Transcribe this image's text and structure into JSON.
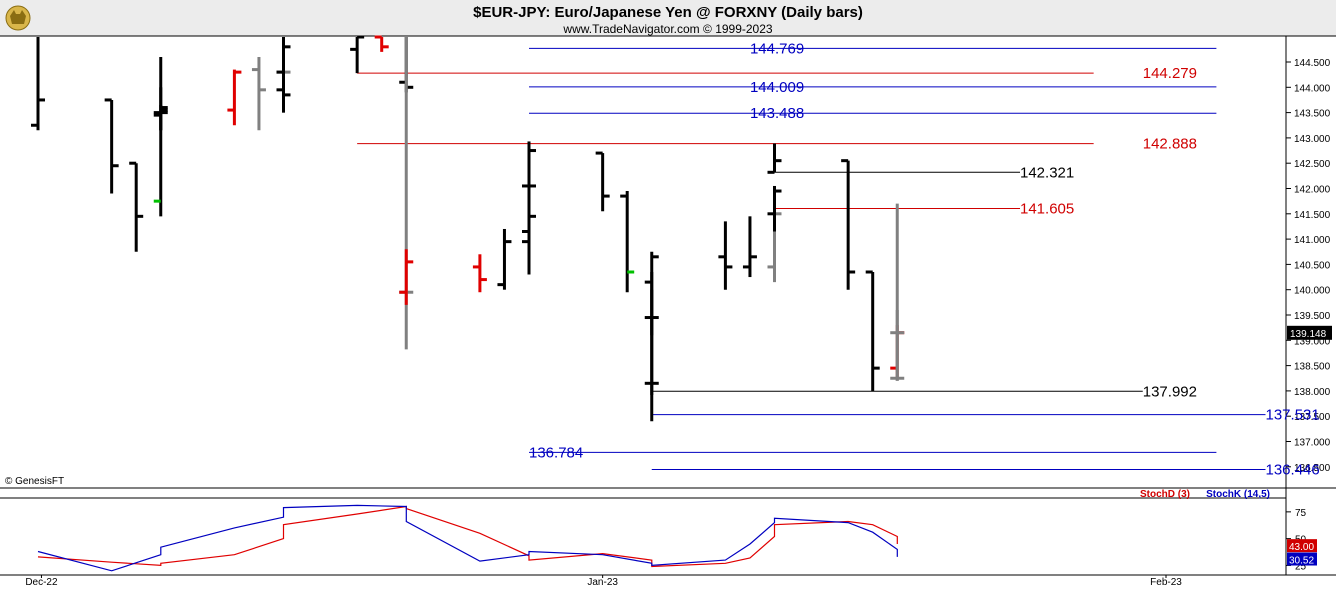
{
  "header": {
    "title": "$EUR-JPY:  Euro/Japanese Yen @ FORXNY  (Daily bars)",
    "subtitle": "www.TradeNavigator.com © 1999-2023",
    "watermark": "© GenesisFT",
    "logo_icon": "bull-logo-icon"
  },
  "colors": {
    "background": "#ffffff",
    "frame": "#000000",
    "header_bg": "#ececec",
    "bar_black": "#000000",
    "bar_gray": "#808080",
    "bar_red": "#e00000",
    "bar_green": "#00c000",
    "level_blue": "#0000c0",
    "level_red": "#d00000",
    "level_black": "#000000",
    "stoch_d": "#d00000",
    "stoch_k": "#0000c0"
  },
  "chart_data": [
    {
      "type": "ohlc",
      "title": "$EUR-JPY:  Euro/Japanese Yen @ FORXNY  (Daily bars)",
      "ylim": [
        136.2,
        145.3
      ],
      "y_ticks": [
        "144.500",
        "144.000",
        "143.500",
        "143.000",
        "142.500",
        "142.000",
        "141.500",
        "141.000",
        "140.500",
        "140.000",
        "139.500",
        "139.000",
        "138.500",
        "138.000",
        "137.500",
        "137.000",
        "136.500"
      ],
      "last_price": "139.148",
      "x_labels": [
        "Dec-22",
        "Jan-23",
        "Feb-23"
      ],
      "bars": [
        {
          "d": "2022-12-02",
          "o": 143.25,
          "h": 145.3,
          "l": 143.15,
          "c": 143.75,
          "col": "black"
        },
        {
          "d": "2022-12-05",
          "o": 143.75,
          "h": 143.75,
          "l": 141.9,
          "c": 142.45,
          "col": "black"
        },
        {
          "d": "2022-12-06",
          "o": 142.5,
          "h": 142.5,
          "l": 140.75,
          "c": 141.45,
          "col": "black"
        },
        {
          "d": "2022-12-07",
          "o": 141.75,
          "h": 143.65,
          "l": 141.45,
          "c": 143.55,
          "col": "black",
          "o_col": "green"
        },
        {
          "d": "2022-12-08",
          "o": 143.5,
          "h": 144.0,
          "l": 143.15,
          "c": 143.5,
          "col": "black"
        },
        {
          "d": "2022-12-09",
          "o": 143.45,
          "h": 144.6,
          "l": 143.15,
          "c": 143.6,
          "col": "black"
        },
        {
          "d": "2022-12-12",
          "o": 143.55,
          "h": 144.35,
          "l": 143.25,
          "c": 144.3,
          "col": "red"
        },
        {
          "d": "2022-12-13",
          "o": 144.35,
          "h": 144.6,
          "l": 143.15,
          "c": 143.95,
          "col": "gray"
        },
        {
          "d": "2022-12-14",
          "o": 143.95,
          "h": 145.3,
          "l": 143.8,
          "c": 143.85,
          "col": "black"
        },
        {
          "d": "2022-12-15",
          "o": 144.3,
          "h": 145.3,
          "l": 143.5,
          "c": 144.3,
          "col": "gray"
        },
        {
          "d": "2022-12-16",
          "o": 144.3,
          "h": 145.3,
          "l": 143.5,
          "c": 144.8,
          "col": "black"
        },
        {
          "d": "2022-12-19",
          "o": 144.75,
          "h": 145.3,
          "l": 144.28,
          "c": 145.1,
          "col": "black"
        },
        {
          "d": "2022-12-20",
          "o": 145.2,
          "h": 145.3,
          "l": 144.7,
          "c": 144.8,
          "col": "red"
        },
        {
          "d": "2022-12-21",
          "o": 144.1,
          "h": 145.3,
          "l": 143.9,
          "c": 144.0,
          "col": "black"
        },
        {
          "d": "2022-12-22",
          "o": 139.95,
          "h": 145.3,
          "l": 138.82,
          "c": 139.95,
          "col": "gray"
        },
        {
          "d": "2022-12-23",
          "o": 139.95,
          "h": 140.8,
          "l": 139.7,
          "c": 140.55,
          "col": "red"
        },
        {
          "d": "2022-12-26",
          "o": 140.45,
          "h": 140.7,
          "l": 139.95,
          "c": 140.2,
          "col": "red"
        },
        {
          "d": "2022-12-27",
          "o": 140.1,
          "h": 141.2,
          "l": 140.0,
          "c": 140.95,
          "col": "black"
        },
        {
          "d": "2022-12-28",
          "o": 140.95,
          "h": 141.6,
          "l": 140.3,
          "c": 141.45,
          "col": "black"
        },
        {
          "d": "2022-12-29",
          "o": 141.15,
          "h": 142.3,
          "l": 141.05,
          "c": 142.05,
          "col": "black"
        },
        {
          "d": "2022-12-30",
          "o": 142.05,
          "h": 142.93,
          "l": 141.9,
          "c": 142.75,
          "col": "black"
        },
        {
          "d": "2023-01-02",
          "o": 142.7,
          "h": 142.7,
          "l": 141.55,
          "c": 141.85,
          "col": "black"
        },
        {
          "d": "2023-01-03",
          "o": 141.85,
          "h": 141.95,
          "l": 139.95,
          "c": 140.35,
          "col": "black",
          "c_col": "green"
        },
        {
          "d": "2023-01-04",
          "o": 140.15,
          "h": 140.35,
          "l": 139.1,
          "c": 139.45,
          "col": "black"
        },
        {
          "d": "2023-01-05",
          "o": 139.45,
          "h": 140.0,
          "l": 137.4,
          "c": 138.15,
          "col": "black"
        },
        {
          "d": "2023-01-06",
          "o": 138.15,
          "h": 140.75,
          "l": 137.92,
          "c": 140.65,
          "col": "black"
        },
        {
          "d": "2023-01-09",
          "o": 140.65,
          "h": 141.35,
          "l": 140.0,
          "c": 140.45,
          "col": "black"
        },
        {
          "d": "2023-01-10",
          "o": 140.45,
          "h": 141.45,
          "l": 140.25,
          "c": 140.65,
          "col": "black"
        },
        {
          "d": "2023-01-11",
          "o": 140.45,
          "h": 141.92,
          "l": 140.15,
          "c": 141.5,
          "col": "gray"
        },
        {
          "d": "2023-01-12",
          "o": 141.5,
          "h": 142.05,
          "l": 141.15,
          "c": 141.95,
          "col": "black"
        },
        {
          "d": "2023-01-13",
          "o": 142.32,
          "h": 142.89,
          "l": 142.32,
          "c": 142.55,
          "col": "black"
        },
        {
          "d": "2023-01-16",
          "o": 142.55,
          "h": 142.55,
          "l": 140.0,
          "c": 140.35,
          "col": "black"
        },
        {
          "d": "2023-01-17",
          "o": 140.35,
          "h": 140.35,
          "l": 137.99,
          "c": 138.45,
          "col": "black"
        },
        {
          "d": "2023-01-18",
          "o": 138.45,
          "h": 139.3,
          "l": 138.25,
          "c": 139.15,
          "col": "red"
        },
        {
          "d": "2023-01-19",
          "o": 139.15,
          "h": 139.6,
          "l": 138.2,
          "c": 138.25,
          "col": "gray"
        },
        {
          "d": "2023-01-20",
          "o": 138.25,
          "h": 141.7,
          "l": 138.2,
          "c": 139.15,
          "col": "gray"
        }
      ],
      "levels": [
        {
          "value": 144.769,
          "label": "144.769",
          "color": "blue",
          "from": "2022-12-30",
          "to": "2023-02-06",
          "label_at": "2023-01-10"
        },
        {
          "value": 144.279,
          "label": "144.279",
          "color": "red",
          "from": "2022-12-19",
          "to": "2023-01-30",
          "label_at": "2023-02-01"
        },
        {
          "value": 144.009,
          "label": "144.009",
          "color": "blue",
          "from": "2022-12-30",
          "to": "2023-02-06",
          "label_at": "2023-01-10"
        },
        {
          "value": 143.488,
          "label": "143.488",
          "color": "blue",
          "from": "2022-12-30",
          "to": "2023-02-06",
          "label_at": "2023-01-10"
        },
        {
          "value": 142.888,
          "label": "142.888",
          "color": "red",
          "from": "2022-12-19",
          "to": "2023-01-30",
          "label_at": "2023-02-01"
        },
        {
          "value": 142.321,
          "label": "142.321",
          "color": "black",
          "from": "2023-01-13",
          "to": "2023-01-25",
          "label_at": "2023-01-27"
        },
        {
          "value": 141.605,
          "label": "141.605",
          "color": "red",
          "from": "2023-01-13",
          "to": "2023-01-25",
          "label_at": "2023-01-27"
        },
        {
          "value": 137.992,
          "label": "137.992",
          "color": "black",
          "from": "2023-01-05",
          "to": "2023-02-01",
          "label_at": "2023-02-02"
        },
        {
          "value": 137.531,
          "label": "137.531",
          "color": "blue",
          "from": "2023-01-04",
          "to": "2023-02-08",
          "label_at": "2023-02-09"
        },
        {
          "value": 136.784,
          "label": "136.784",
          "color": "blue",
          "from": "2022-12-30",
          "to": "2023-02-06",
          "label_at": "2022-12-30"
        },
        {
          "value": 136.446,
          "label": "136.446",
          "color": "blue",
          "from": "2023-01-04",
          "to": "2023-02-08",
          "label_at": "2023-02-09"
        }
      ]
    },
    {
      "type": "line",
      "legend": [
        "StochD (3)",
        "StochK (14,5)"
      ],
      "ylim": [
        17,
        87
      ],
      "y_ticks": [
        "75",
        "50",
        "25"
      ],
      "last_values": {
        "StochD": "43.00",
        "StochK": "30.52"
      },
      "series": [
        {
          "name": "StochD (3)",
          "color": "red",
          "x": [
            "2022-12-02",
            "2022-12-05",
            "2022-12-07",
            "2022-12-09",
            "2022-12-12",
            "2022-12-14",
            "2022-12-16",
            "2022-12-19",
            "2022-12-21",
            "2022-12-22",
            "2022-12-26",
            "2022-12-28",
            "2022-12-30",
            "2023-01-02",
            "2023-01-04",
            "2023-01-05",
            "2023-01-06",
            "2023-01-09",
            "2023-01-10",
            "2023-01-12",
            "2023-01-13",
            "2023-01-16",
            "2023-01-17",
            "2023-01-19",
            "2023-01-20"
          ],
          "values": [
            33,
            28,
            25,
            27,
            35,
            50,
            63,
            73,
            80,
            78,
            55,
            34,
            30,
            36,
            30,
            27,
            24,
            27,
            32,
            52,
            63,
            66,
            63,
            52,
            45
          ]
        },
        {
          "name": "StochK (14,5)",
          "color": "blue",
          "x": [
            "2022-12-02",
            "2022-12-05",
            "2022-12-07",
            "2022-12-09",
            "2022-12-12",
            "2022-12-14",
            "2022-12-16",
            "2022-12-19",
            "2022-12-21",
            "2022-12-22",
            "2022-12-26",
            "2022-12-28",
            "2022-12-30",
            "2023-01-02",
            "2023-01-04",
            "2023-01-05",
            "2023-01-06",
            "2023-01-09",
            "2023-01-10",
            "2023-01-12",
            "2023-01-13",
            "2023-01-16",
            "2023-01-17",
            "2023-01-19",
            "2023-01-20"
          ],
          "values": [
            38,
            20,
            35,
            42,
            60,
            70,
            79,
            81,
            80,
            66,
            29,
            35,
            38,
            35,
            27,
            25,
            25,
            30,
            45,
            65,
            69,
            65,
            56,
            40,
            33
          ]
        }
      ]
    }
  ]
}
